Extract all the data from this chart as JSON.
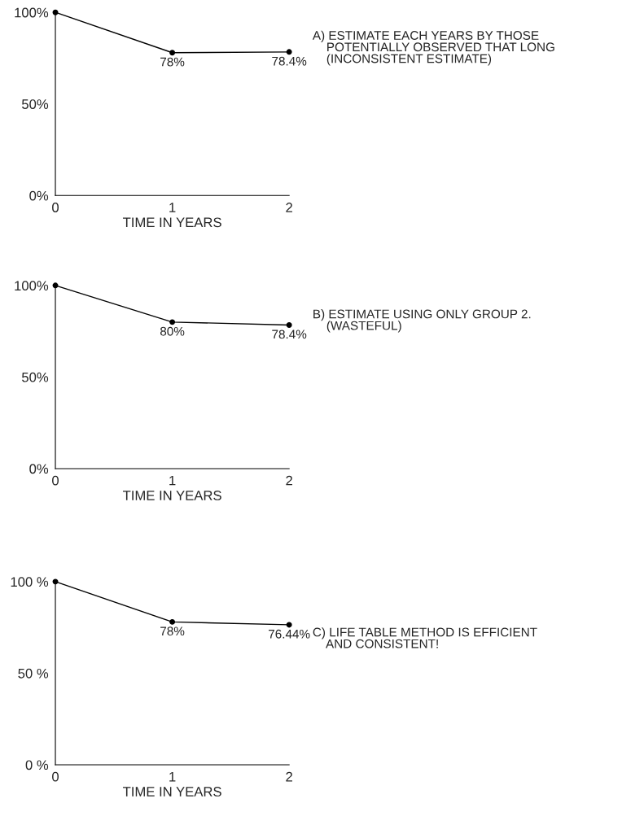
{
  "chart_data": [
    {
      "type": "line",
      "x": [
        0,
        1,
        2
      ],
      "values": [
        100,
        78,
        78.4
      ],
      "color": "#000000",
      "value_labels": [
        null,
        "78%",
        "78.4%"
      ],
      "xlim": [
        0,
        2
      ],
      "ylim": [
        0,
        100
      ],
      "xticks": [
        0,
        1,
        2
      ],
      "yticks": [
        {
          "value": 0,
          "label": "0%"
        },
        {
          "value": 50,
          "label": "50%"
        },
        {
          "value": 100,
          "label": "100%"
        }
      ],
      "xlabel": "TIME IN YEARS",
      "marker": "circle",
      "line_style": "solid",
      "annotations": [
        "A) ESTIMATE EACH YEARS BY THOSE\n    POTENTIALLY OBSERVED THAT LONG\n    (INCONSISTENT ESTIMATE)"
      ]
    },
    {
      "type": "line",
      "x": [
        0,
        1,
        2
      ],
      "values": [
        100,
        80,
        78.4
      ],
      "color": "#000000",
      "value_labels": [
        null,
        "80%",
        "78.4%"
      ],
      "xlim": [
        0,
        2
      ],
      "ylim": [
        0,
        100
      ],
      "xticks": [
        0,
        1,
        2
      ],
      "yticks": [
        {
          "value": 0,
          "label": "0%"
        },
        {
          "value": 50,
          "label": "50%"
        },
        {
          "value": 100,
          "label": "100%"
        }
      ],
      "xlabel": "TIME IN YEARS",
      "marker": "circle",
      "line_style": "solid",
      "annotations": [
        "B) ESTIMATE USING ONLY GROUP 2.\n    (WASTEFUL)"
      ]
    },
    {
      "type": "line",
      "x": [
        0,
        1,
        2
      ],
      "values": [
        100,
        78,
        76.44
      ],
      "color": "#000000",
      "value_labels": [
        null,
        "78%",
        "76.44%"
      ],
      "xlim": [
        0,
        2
      ],
      "ylim": [
        0,
        100
      ],
      "xticks": [
        0,
        1,
        2
      ],
      "yticks": [
        {
          "value": 0,
          "label": "0 %"
        },
        {
          "value": 50,
          "label": "50 %"
        },
        {
          "value": 100,
          "label": "100 %"
        }
      ],
      "xlabel": "TIME IN YEARS",
      "marker": "circle",
      "line_style": "solid",
      "annotations": [
        "C) LIFE TABLE METHOD IS EFFICIENT\n    AND CONSISTENT!"
      ]
    }
  ]
}
